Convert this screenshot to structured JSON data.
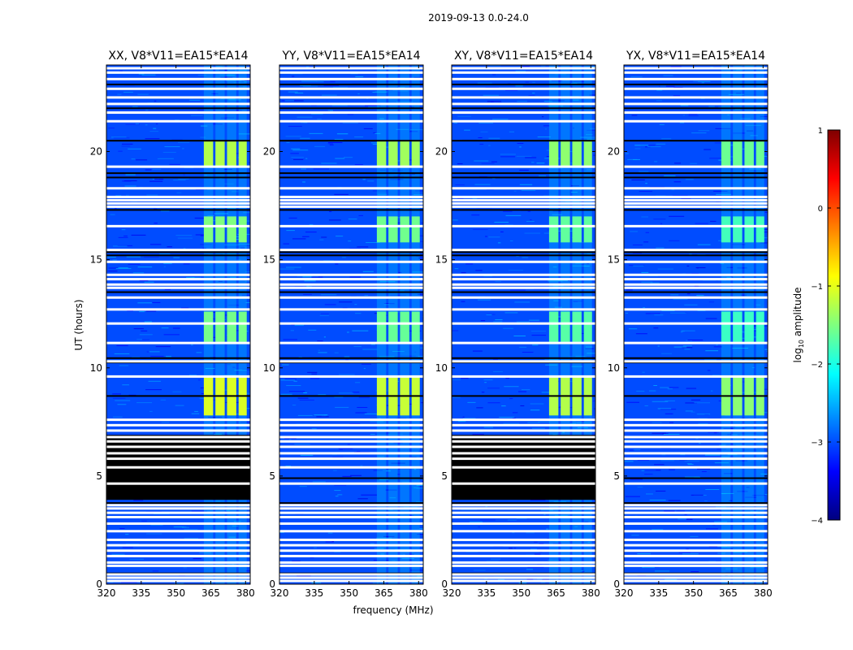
{
  "figure_title": "2019-09-13 0.0-24.0",
  "chart_data": {
    "type": "heatmap",
    "title": "2019-09-13 0.0-24.0",
    "xlabel": "frequency (MHz)",
    "ylabel": "UT (hours)",
    "xlim": [
      320,
      382
    ],
    "ylim": [
      0,
      24
    ],
    "xticks": [
      320,
      335,
      350,
      365,
      380
    ],
    "yticks": [
      0,
      5,
      10,
      15,
      20
    ],
    "colorbar": {
      "label": "log10 amplitude",
      "label_main": "log",
      "label_sub": "10",
      "label_rest": " amplitude",
      "range": [
        -4,
        1
      ],
      "ticks": [
        {
          "value": 1,
          "label": "1"
        },
        {
          "value": 0,
          "label": "0"
        },
        {
          "value": -1,
          "label": "−1"
        },
        {
          "value": -2,
          "label": "−2"
        },
        {
          "value": -3,
          "label": "−3"
        },
        {
          "value": -4,
          "label": "−4"
        }
      ],
      "colors": [
        "#00007f",
        "#0000ff",
        "#007fff",
        "#00ffff",
        "#7fff7f",
        "#ffff00",
        "#ff7f00",
        "#ff0000",
        "#7f0000"
      ]
    },
    "background_level": -3.0,
    "panels": [
      {
        "name": "XX",
        "title": "XX, V8*V11=EA15*EA14",
        "black_block": [
          3.9,
          6.9
        ],
        "signal_scale": 1.0
      },
      {
        "name": "YY",
        "title": "YY, V8*V11=EA15*EA14",
        "black_block": null,
        "signal_scale": 0.95
      },
      {
        "name": "XY",
        "title": "XY, V8*V11=EA15*EA14",
        "black_block": [
          3.9,
          6.9
        ],
        "signal_scale": 0.9
      },
      {
        "name": "YX",
        "title": "YX, V8*V11=EA15*EA14",
        "black_block": null,
        "signal_scale": 0.8
      }
    ],
    "signal_channels_mhz": [
      [
        362,
        366
      ],
      [
        367,
        371
      ],
      [
        372,
        376
      ],
      [
        377,
        380.5
      ]
    ],
    "signal_time_blocks": [
      {
        "t": [
          7.8,
          9.6
        ],
        "level": -1.05
      },
      {
        "t": [
          11.2,
          12.6
        ],
        "level": -1.55
      },
      {
        "t": [
          15.8,
          17.0
        ],
        "level": -1.5
      },
      {
        "t": [
          19.3,
          20.5
        ],
        "level": -1.25
      }
    ],
    "flagged_times_white": [
      0.15,
      0.3,
      0.45,
      0.85,
      1.0,
      1.3,
      1.55,
      1.8,
      2.05,
      2.45,
      2.8,
      3.1,
      3.3,
      3.5,
      3.65,
      4.65,
      5.4,
      5.8,
      6.05,
      6.35,
      6.6,
      6.8,
      7.1,
      7.35,
      7.6,
      9.6,
      10.3,
      11.15,
      12.05,
      12.7,
      13.25,
      13.7,
      13.85,
      14.1,
      14.3,
      14.9,
      15.45,
      16.55,
      17.45,
      17.6,
      17.75,
      17.9,
      18.3,
      19.3,
      21.4,
      21.8,
      22.2,
      22.5,
      22.9,
      23.35,
      23.65,
      23.85
    ],
    "flagged_times_black": [
      0.5,
      3.75,
      4.9,
      8.7,
      10.25,
      10.45,
      13.5,
      15.2,
      15.35,
      17.3,
      18.8,
      19.0,
      20.5,
      22.0,
      23.1
    ]
  }
}
